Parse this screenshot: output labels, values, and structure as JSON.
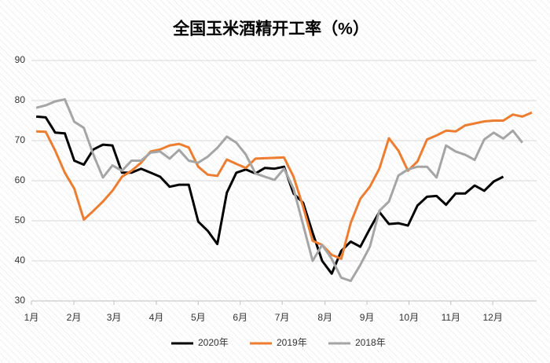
{
  "chart_data": {
    "type": "line",
    "title": "全国玉米酒精开工率（%）",
    "xlim": [
      0,
      53
    ],
    "xticks": [
      {
        "value": 0,
        "label": "1月"
      },
      {
        "value": 4.45,
        "label": "2月"
      },
      {
        "value": 8.66,
        "label": "3月"
      },
      {
        "value": 13.1,
        "label": "4月"
      },
      {
        "value": 17.5,
        "label": "5月"
      },
      {
        "value": 21.9,
        "label": "6月"
      },
      {
        "value": 26.3,
        "label": "7月"
      },
      {
        "value": 30.8,
        "label": "8月"
      },
      {
        "value": 35.2,
        "label": "9月"
      },
      {
        "value": 39.6,
        "label": "10月"
      },
      {
        "value": 44.0,
        "label": "11月"
      },
      {
        "value": 48.4,
        "label": "12月"
      }
    ],
    "ylim": [
      30,
      90
    ],
    "yticks": [
      30,
      40,
      50,
      60,
      70,
      80,
      90
    ],
    "grid": true,
    "legend": "bottom",
    "series": [
      {
        "name": "2020年",
        "color": "#000000",
        "x": [
          0.5,
          1.5,
          2.5,
          3.5,
          4.5,
          5.5,
          6.5,
          7.5,
          8.5,
          9.5,
          10.5,
          11.5,
          12.5,
          13.5,
          14.5,
          15.5,
          16.5,
          17.5,
          18.5,
          19.5,
          20.5,
          21.5,
          22.5,
          23.5,
          24.5,
          25.5,
          26.5,
          27.5,
          28.5,
          29.5,
          30.5,
          31.5,
          32.5,
          33.5,
          34.5,
          35.5,
          36.5,
          37.5,
          38.5,
          39.5,
          40.5,
          41.5,
          42.5,
          43.5,
          44.5,
          45.5,
          46.5,
          47.5,
          48.5,
          49.5
        ],
        "values": [
          76,
          75.8,
          72,
          71.8,
          65,
          64,
          67.8,
          69,
          68.8,
          62,
          62,
          63,
          62,
          61,
          58.5,
          59,
          59,
          49.8,
          47.5,
          44.2,
          57,
          62,
          62.8,
          61.8,
          63.2,
          63,
          63.5,
          56.8,
          54.5,
          47,
          40,
          36.8,
          42.5,
          44.8,
          43.5,
          48,
          52.2,
          49.2,
          49.4,
          48.8,
          53.8,
          56,
          56.2,
          54,
          56.8,
          56.8,
          58.8,
          57.5,
          59.8,
          61
        ]
      },
      {
        "name": "2019年",
        "color": "#ed7d31",
        "x": [
          0.5,
          1.5,
          2.5,
          3.5,
          4.5,
          5.5,
          6.5,
          7.5,
          8.5,
          9.5,
          10.5,
          11.5,
          12.5,
          13.5,
          14.5,
          15.5,
          16.5,
          17.5,
          18.5,
          19.5,
          20.5,
          21.5,
          22.5,
          23.5,
          24.5,
          25.5,
          26.5,
          27.5,
          28.5,
          29.5,
          30.5,
          31.5,
          32.5,
          33.5,
          34.5,
          35.5,
          36.5,
          37.5,
          38.5,
          39.5,
          40.5,
          41.5,
          42.5,
          43.5,
          44.5,
          45.5,
          46.5,
          47.5,
          48.5,
          49.5,
          50.5,
          51.5,
          52.5
        ],
        "values": [
          72.3,
          72.2,
          67.5,
          62,
          58,
          50.3,
          52.5,
          54.8,
          57.5,
          61,
          62.5,
          64.5,
          67.3,
          67.8,
          68.8,
          69.2,
          68.3,
          63.5,
          61.5,
          61.2,
          65.3,
          64.2,
          63.2,
          65.5,
          65.6,
          65.7,
          65.8,
          61,
          53.5,
          45,
          44,
          41.5,
          40.5,
          49.5,
          55.5,
          58.5,
          63,
          70.6,
          67.5,
          62.5,
          64.8,
          70.3,
          71.3,
          72.5,
          72.3,
          73.8,
          74.3,
          74.8,
          75,
          75,
          76.5,
          76,
          77
        ]
      },
      {
        "name": "2018年",
        "color": "#a5a5a5",
        "x": [
          0.5,
          1.5,
          2.5,
          3.5,
          4.5,
          5.5,
          6.5,
          7.5,
          8.5,
          9.5,
          10.5,
          11.5,
          12.5,
          13.5,
          14.5,
          15.5,
          16.5,
          17.5,
          18.5,
          19.5,
          20.5,
          21.5,
          22.5,
          23.5,
          24.5,
          25.5,
          26.5,
          27.5,
          28.5,
          29.5,
          30.5,
          31.5,
          32.5,
          33.5,
          34.5,
          35.5,
          36.5,
          37.5,
          38.5,
          39.5,
          40.5,
          41.5,
          42.5,
          43.5,
          44.5,
          45.5,
          46.5,
          47.5,
          48.5,
          49.5,
          50.5,
          51.5
        ],
        "values": [
          78.2,
          78.8,
          79.8,
          80.3,
          74.7,
          73.2,
          66.5,
          60.8,
          63.8,
          62.5,
          65,
          65,
          67,
          67.3,
          65.5,
          67.7,
          65,
          64.5,
          66,
          68.2,
          71,
          69.5,
          66.5,
          61.8,
          61,
          60.2,
          63,
          58,
          49,
          40,
          44,
          40.5,
          35.8,
          35,
          39,
          43.5,
          52.5,
          54.8,
          61.3,
          62.8,
          63.5,
          63.5,
          60.8,
          68.8,
          67.3,
          66.5,
          65.2,
          70.3,
          72,
          70.5,
          72.5,
          69.5
        ]
      }
    ]
  }
}
